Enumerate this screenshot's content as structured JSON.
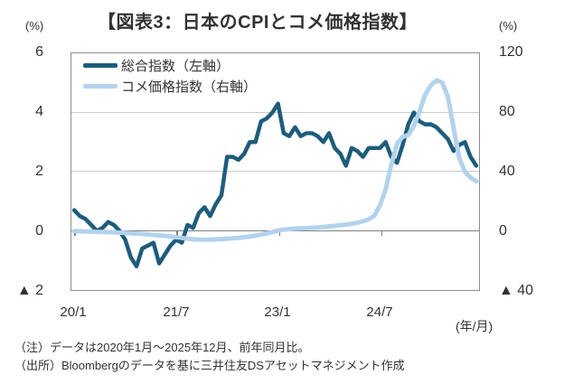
{
  "title": "【図表3：日本のCPIとコメ価格指数】",
  "axes": {
    "left_unit": "(%)",
    "right_unit": "(%)",
    "left_ticks": [
      "6",
      "4",
      "2",
      "0",
      "▲ 2"
    ],
    "right_ticks": [
      "120",
      "80",
      "40",
      "0",
      "▲ 40"
    ],
    "x_ticks": [
      "20/1",
      "21/7",
      "23/1",
      "24/7"
    ],
    "x_unit": "(年/月)"
  },
  "legend": [
    {
      "label": "総合指数（左軸）",
      "color": "#1E5C7C"
    },
    {
      "label": "コメ価格指数（右軸）",
      "color": "#B3D2EC"
    }
  ],
  "notes": {
    "note": "（注）データは2020年1月～2025年12月、前年同月比。",
    "source": "（出所）Bloombergのデータを基に三井住友DSアセットマネジメント作成"
  },
  "chart_data": {
    "type": "line",
    "title": "【図表3：日本のCPIとコメ価格指数】",
    "x_start": "2020/1",
    "x_end": "2025/12",
    "x_frequency": "monthly",
    "x_tick_labels": [
      "20/1",
      "21/7",
      "23/1",
      "24/7"
    ],
    "x_tick_indices": [
      0,
      18,
      36,
      54
    ],
    "x_axis_title": "(年/月)",
    "left_axis": {
      "label": "(%)",
      "min": -2,
      "max": 6,
      "ticks": [
        6,
        4,
        2,
        0,
        -2
      ]
    },
    "right_axis": {
      "label": "(%)",
      "min": -40,
      "max": 120,
      "ticks": [
        120,
        80,
        40,
        0,
        -40
      ]
    },
    "grid": "horizontal",
    "legend_position": "top-left-inside",
    "series": [
      {
        "name": "総合指数（左軸）",
        "axis": "left",
        "color": "#1E5C7C",
        "stroke_width": 4.5,
        "values": [
          0.7,
          0.5,
          0.4,
          0.2,
          0.0,
          0.1,
          0.3,
          0.2,
          0.0,
          -0.3,
          -0.9,
          -1.2,
          -0.6,
          -0.5,
          -0.4,
          -1.1,
          -0.8,
          -0.5,
          -0.3,
          -0.4,
          0.2,
          0.1,
          0.6,
          0.8,
          0.5,
          0.9,
          1.2,
          2.5,
          2.5,
          2.4,
          2.6,
          3.0,
          3.0,
          3.7,
          3.8,
          4.0,
          4.3,
          3.3,
          3.2,
          3.5,
          3.2,
          3.3,
          3.3,
          3.2,
          3.0,
          3.3,
          2.8,
          2.6,
          2.2,
          2.8,
          2.7,
          2.5,
          2.8,
          2.8,
          2.8,
          3.0,
          2.5,
          2.3,
          2.9,
          3.6,
          4.0,
          3.7,
          3.6,
          3.6,
          3.5,
          3.3,
          3.1,
          2.7,
          2.9,
          3.0,
          2.5,
          2.2
        ]
      },
      {
        "name": "コメ価格指数（右軸）",
        "axis": "right",
        "color": "#B3D2EC",
        "stroke_width": 5,
        "values": [
          -0.2,
          -0.3,
          -0.4,
          -0.5,
          -0.7,
          -0.8,
          -0.9,
          -1.0,
          -1.2,
          -1.4,
          -1.7,
          -1.9,
          -2.1,
          -2.4,
          -2.7,
          -3.1,
          -3.4,
          -3.8,
          -4.3,
          -4.8,
          -5.3,
          -5.7,
          -5.9,
          -6.0,
          -6.0,
          -5.8,
          -5.6,
          -5.3,
          -5.0,
          -4.7,
          -4.3,
          -3.8,
          -3.2,
          -2.5,
          -1.7,
          -0.8,
          0.2,
          0.8,
          1.2,
          1.5,
          1.7,
          1.9,
          2.1,
          2.3,
          2.6,
          3.0,
          3.4,
          3.8,
          4.2,
          4.8,
          5.5,
          6.5,
          7.8,
          10.2,
          17.2,
          28.0,
          44.7,
          58.9,
          63.6,
          64.7,
          70.9,
          80.9,
          92.1,
          98.4,
          101.7,
          100.2,
          90.7,
          69.7,
          49.2,
          40.0,
          36.0,
          33.5
        ]
      }
    ]
  }
}
